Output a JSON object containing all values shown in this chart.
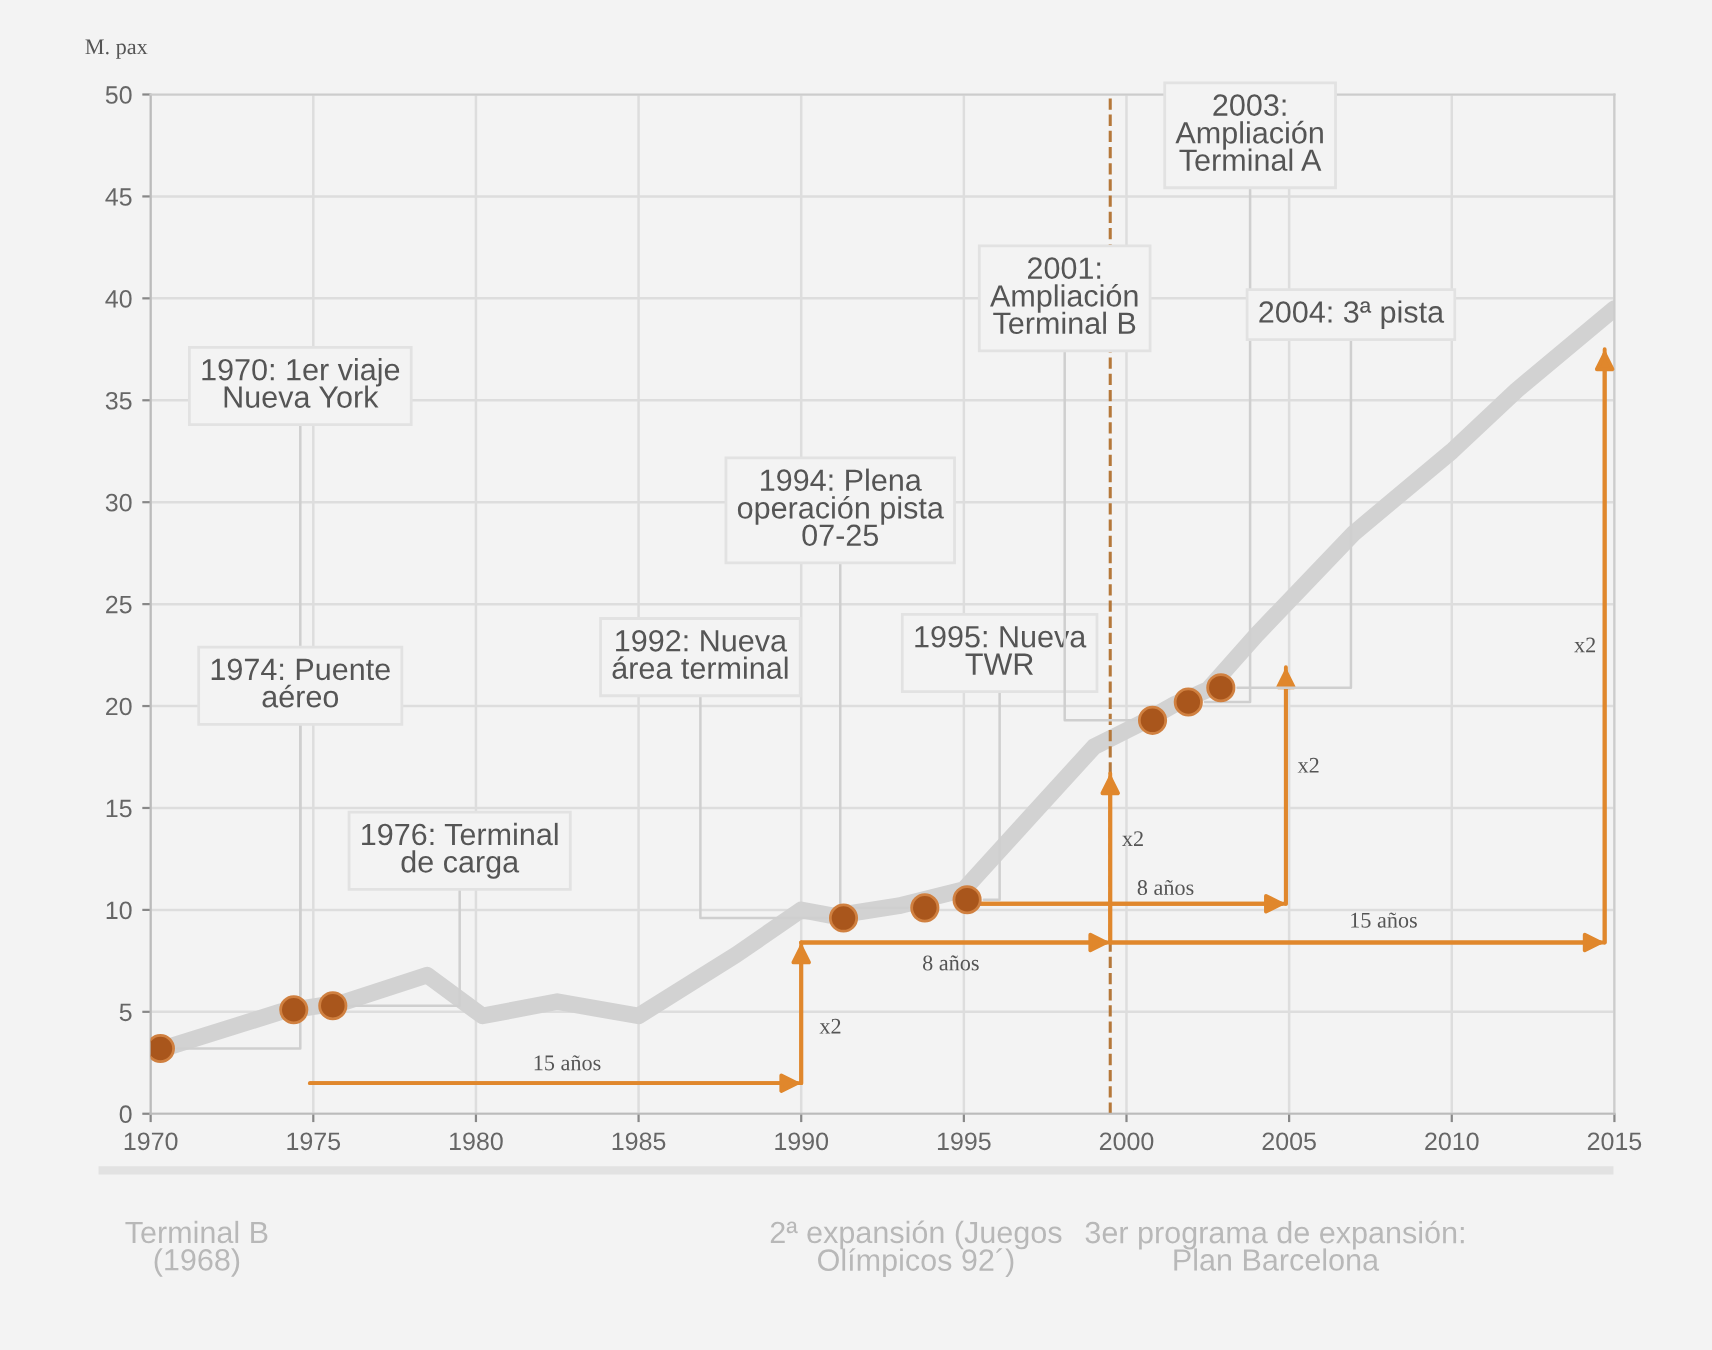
{
  "chart_data": {
    "type": "line",
    "ylabel": "M. pax",
    "xlim": [
      1970,
      2015
    ],
    "xticks": [
      1970,
      1975,
      1980,
      1985,
      1990,
      1995,
      2000,
      2005,
      2010,
      2015
    ],
    "ylim": [
      0,
      50
    ],
    "yticks": [
      0,
      5,
      10,
      15,
      20,
      25,
      30,
      35,
      40,
      45,
      50
    ],
    "grid": true,
    "series": [
      {
        "color": "#d2d2d2",
        "x": [
          1970,
          1974,
          1976,
          1978.5,
          1980.2,
          1982.5,
          1985,
          1988,
          1990,
          1991,
          1993,
          1995,
          1997,
          1999,
          2000.5,
          2001.5,
          2002.5,
          2004,
          2007,
          2010,
          2012,
          2015
        ],
        "values": [
          3.0,
          5.0,
          5.5,
          6.8,
          4.8,
          5.5,
          4.8,
          7.8,
          10.0,
          9.7,
          10.2,
          11.0,
          14.5,
          18.0,
          19.2,
          20.1,
          20.8,
          23.5,
          28.5,
          32.5,
          35.5,
          39.5
        ]
      },
      {
        "type": "scatter",
        "color": "#a9561c",
        "marker": "circle",
        "x": [
          1970.3,
          1974.4,
          1975.6,
          1991.3,
          1993.8,
          1995.1,
          2000.8,
          2001.9,
          2002.9
        ],
        "values": [
          3.2,
          5.1,
          5.3,
          9.6,
          10.1,
          10.5,
          19.3,
          20.2,
          20.9
        ]
      },
      {
        "type": "line",
        "color": "#e0872c",
        "x": [
          1974.9,
          1990,
          1990
        ],
        "values": [
          1.5,
          1.5,
          8.4
        ]
      },
      {
        "type": "line",
        "color": "#e0872c",
        "x": [
          1990,
          1999.5,
          1999.5
        ],
        "values": [
          8.4,
          8.4,
          16.7
        ]
      },
      {
        "type": "line",
        "color": "#e0872c",
        "x": [
          1995.1,
          2004.9,
          2004.9
        ],
        "values": [
          10.3,
          10.3,
          21.9
        ]
      },
      {
        "type": "line",
        "color": "#e0872c",
        "x": [
          1999.5,
          2014.7,
          2014.7
        ],
        "values": [
          8.4,
          8.4,
          37.5
        ]
      }
    ],
    "ref_lines": [
      {
        "axis": "x",
        "value": 1999.5,
        "color": "#b5783a",
        "line_style": "dashed"
      }
    ],
    "annotations": [
      {
        "text": "1970: 1er viaje\nNueva York",
        "x": 1970.3,
        "y": 3.2
      },
      {
        "text": "1974: Puente\naéreo",
        "x": 1974.4,
        "y": 5.1
      },
      {
        "text": "1976: Terminal\nde carga",
        "x": 1975.6,
        "y": 5.3
      },
      {
        "text": "1992: Nueva\nárea terminal",
        "x": 1991.3,
        "y": 9.6
      },
      {
        "text": "1994: Plena\noperación pista\n07-25",
        "x": 1993.8,
        "y": 10.1
      },
      {
        "text": "1995: Nueva\nTWR",
        "x": 1995.1,
        "y": 10.5
      },
      {
        "text": "2001:\nAmpliación\nTerminal B",
        "x": 2000.8,
        "y": 19.3
      },
      {
        "text": "2003:\nAmpliación\nTerminal A",
        "x": 2001.9,
        "y": 20.2
      },
      {
        "text": "2004: 3ª pista",
        "x": 2002.9,
        "y": 20.9
      },
      "15 años",
      "x2",
      "8 años",
      "x2",
      "8 años",
      "x2",
      "15 años",
      "x2",
      "Terminal B\n(1968)",
      "2ª expansión (Juegos\nOlímpicos 92´)",
      "3er programa de expansión:\nPlan Barcelona"
    ]
  }
}
